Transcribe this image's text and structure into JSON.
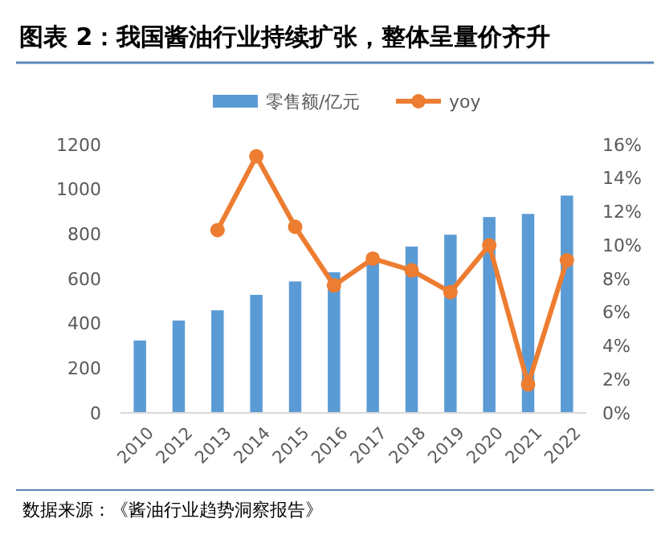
{
  "chart_data": {
    "type": "bar",
    "title": "图表 2：我国酱油行业持续扩张，整体呈量价齐升",
    "categories": [
      "2010",
      "2012",
      "2013",
      "2014",
      "2015",
      "2016",
      "2017",
      "2018",
      "2019",
      "2020",
      "2021",
      "2022"
    ],
    "series": [
      {
        "name": "零售额/亿元",
        "color": "#5b9bd5",
        "values": [
          324,
          413,
          459,
          528,
          588,
          629,
          689,
          744,
          797,
          876,
          890,
          972
        ]
      },
      {
        "name": "yoy",
        "type": "line",
        "axis": "y2",
        "color": "#ed7d31",
        "marker": "circle",
        "values": [
          null,
          null,
          10.9,
          15.3,
          11.1,
          7.6,
          9.2,
          8.5,
          7.2,
          10.0,
          1.7,
          9.1
        ]
      }
    ],
    "ylim": [
      0,
      1200
    ],
    "yticks": [
      0,
      200,
      400,
      600,
      800,
      1000,
      1200
    ],
    "y2lim": [
      0,
      16
    ],
    "y2ticks": [
      {
        "value": 0,
        "label": "0%"
      },
      {
        "value": 2,
        "label": "2%"
      },
      {
        "value": 4,
        "label": "4%"
      },
      {
        "value": 6,
        "label": "6%"
      },
      {
        "value": 8,
        "label": "8%"
      },
      {
        "value": 10,
        "label": "10%"
      },
      {
        "value": 12,
        "label": "12%"
      },
      {
        "value": 14,
        "label": "14%"
      },
      {
        "value": 16,
        "label": "16%"
      }
    ],
    "legend": "top",
    "grid": false,
    "annotations": [
      "数据来源：《酱油行业趋势洞察报告》"
    ]
  }
}
